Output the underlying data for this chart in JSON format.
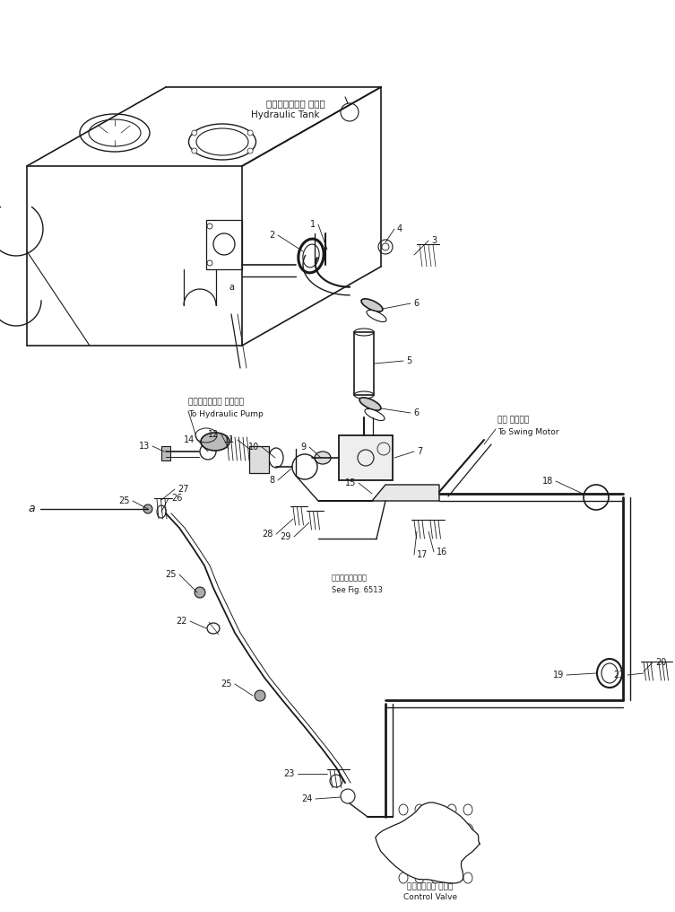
{
  "bg_color": "#ffffff",
  "line_color": "#1a1a1a",
  "fig_width": 7.53,
  "fig_height": 10.16,
  "dpi": 100,
  "labels": {
    "hydraulic_tank_jp": "ハイドロリック タンク",
    "hydraulic_tank_en": "Hydraulic Tank",
    "hydraulic_pump_jp": "ハイドロリック ポンプへ",
    "hydraulic_pump_en": "To Hydraulic Pump",
    "swing_motor_jp": "旋回 モータへ",
    "swing_motor_en": "To Swing Motor",
    "control_valve_jp": "コントロール バルブ",
    "control_valve_en": "Control Valve",
    "see_fig_jp": "第６５１３図参照",
    "see_fig_en": "See Fig. 6513",
    "point_a": "a"
  }
}
